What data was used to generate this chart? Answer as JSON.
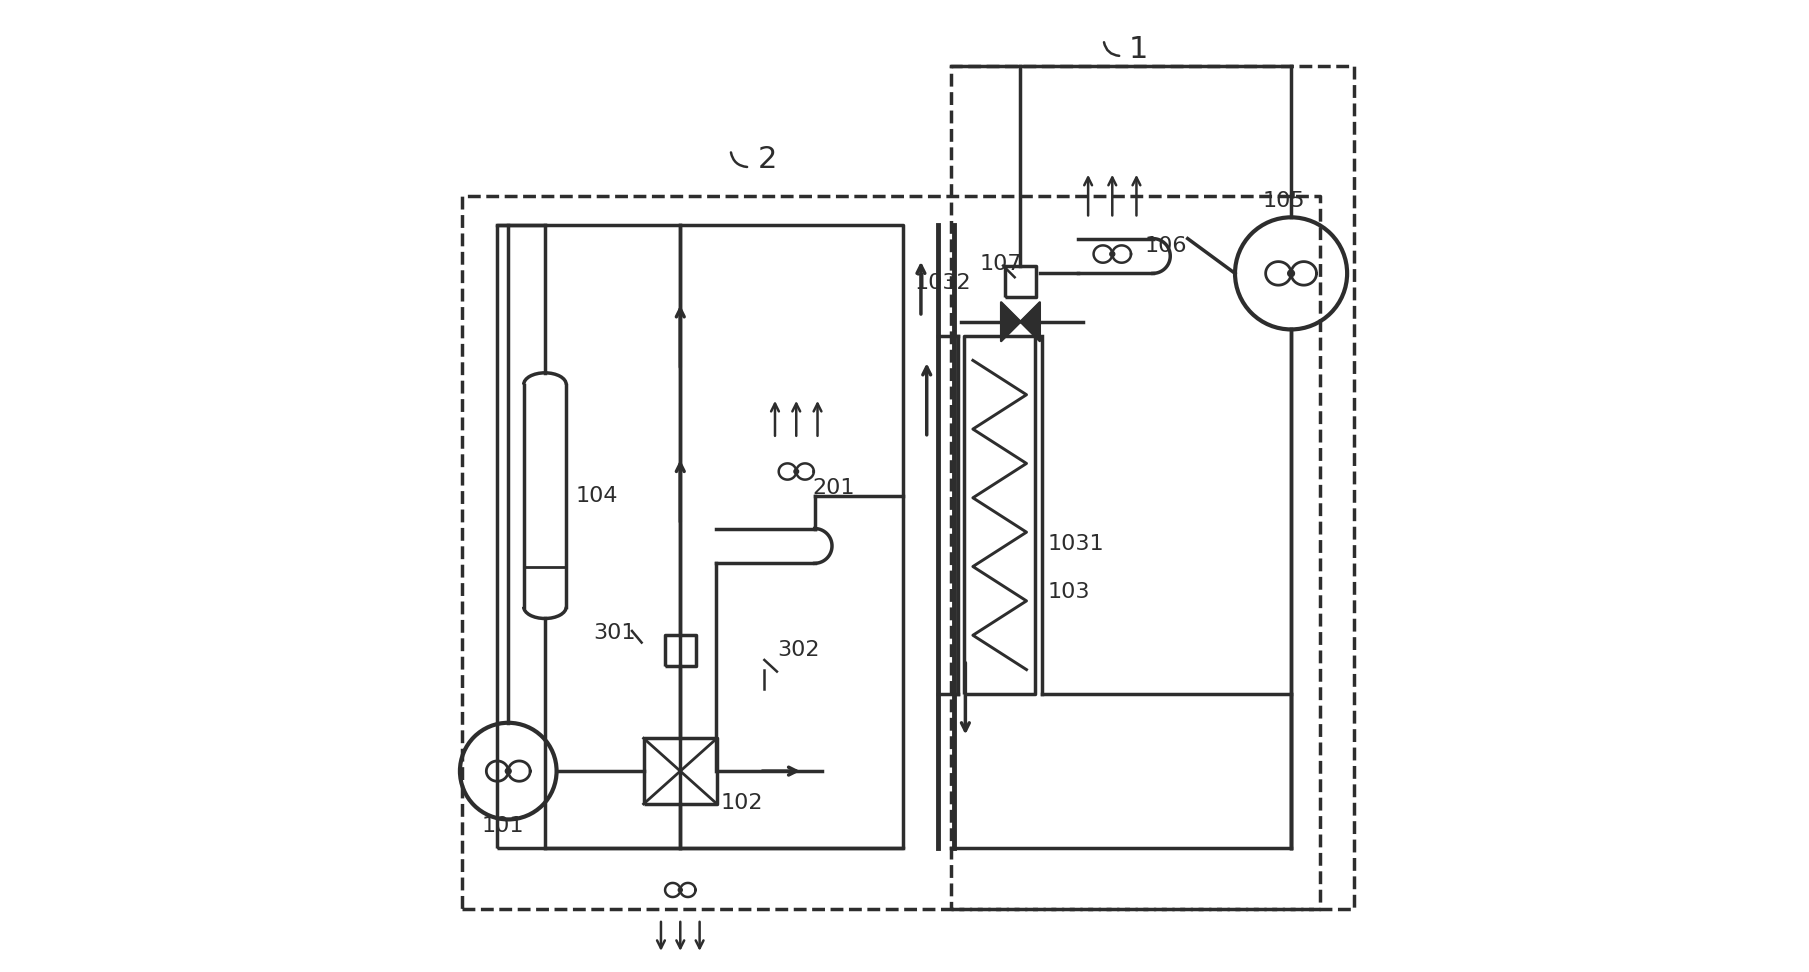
{
  "bg_color": "#ffffff",
  "line_color": "#2d2d2d",
  "lw": 2.5,
  "lw2": 1.8,
  "fig_w": 18.09,
  "fig_h": 9.72,
  "dpi": 100
}
